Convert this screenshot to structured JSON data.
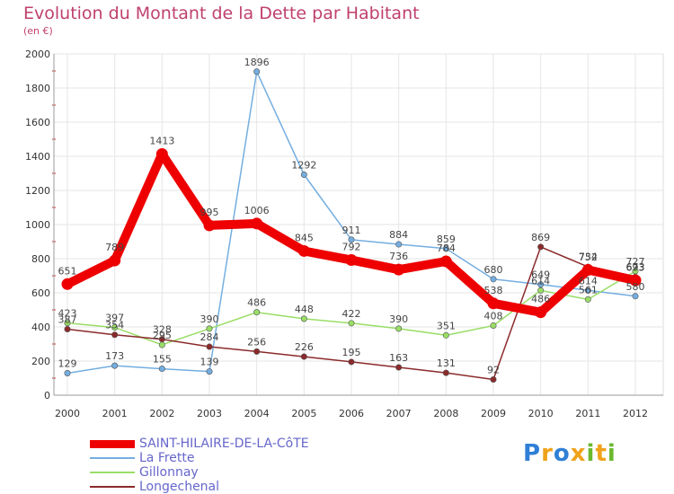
{
  "colors": {
    "title": "#c0406e",
    "legend_text": "#6666cc",
    "axis_text": "#333333",
    "grid": "#e6e6e6"
  },
  "logo": {
    "text": "Proxiti"
  },
  "chart_data": {
    "type": "line",
    "title": "Evolution du Montant de la Dette par Habitant",
    "subtitle": "(en €)",
    "xlabel": "",
    "ylabel": "",
    "ylim": [
      0,
      2000
    ],
    "yticks": [
      0,
      200,
      400,
      600,
      800,
      1000,
      1200,
      1400,
      1600,
      1800,
      2000
    ],
    "grid": true,
    "legend": "bottom-left",
    "x": [
      "2000",
      "2001",
      "2002",
      "2003",
      "2004",
      "2005",
      "2006",
      "2007",
      "2008",
      "2009",
      "2010",
      "2011",
      "2012"
    ],
    "series": [
      {
        "name": "SAINT-HILAIRE-DE-LA-CôTE",
        "color": "#ee0000",
        "values": [
          651,
          789,
          1413,
          995,
          1006,
          845,
          792,
          736,
          784,
          538,
          486,
          734,
          673
        ]
      },
      {
        "name": "La Frette",
        "color": "#74aee0",
        "values": [
          129,
          173,
          155,
          139,
          1896,
          1292,
          911,
          884,
          859,
          680,
          649,
          614,
          580
        ]
      },
      {
        "name": "Gillonnay",
        "color": "#99dd66",
        "values": [
          423,
          397,
          295,
          390,
          486,
          448,
          422,
          390,
          351,
          408,
          614,
          561,
          727
        ]
      },
      {
        "name": "Longechenal",
        "color": "#8b2a2a",
        "values": [
          387,
          354,
          328,
          284,
          256,
          226,
          195,
          163,
          131,
          92,
          869,
          752,
          693
        ]
      }
    ]
  }
}
